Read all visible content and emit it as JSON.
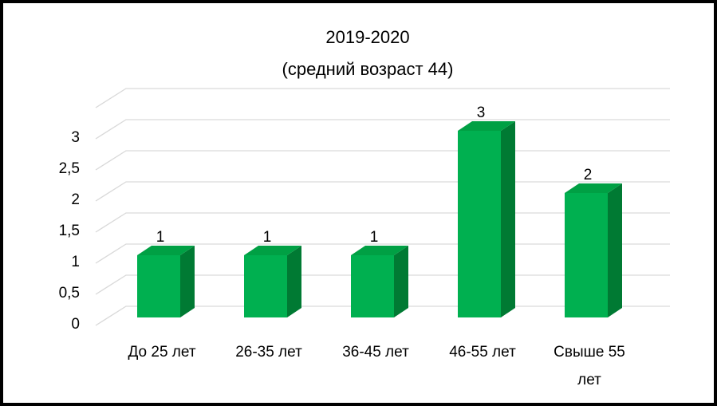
{
  "chart_data": {
    "type": "bar3d",
    "title": "2019-2020",
    "subtitle": "(средний возраст 44)",
    "categories": [
      "До 25 лет",
      "26-35 лет",
      "36-45 лет",
      "46-55 лет",
      "Свыше 55 лет"
    ],
    "values": [
      1,
      1,
      1,
      3,
      2
    ],
    "color": "#00b050",
    "side_color": "#007a33",
    "top_color": "#00a044",
    "ylim": [
      0,
      3.5
    ],
    "yticks": [
      0,
      {
        "value": 0.5,
        "label": "0,5"
      },
      1,
      {
        "value": 1.5,
        "label": "1,5"
      },
      2,
      {
        "value": 2.5,
        "label": "2,5"
      },
      3
    ],
    "grid": true
  }
}
